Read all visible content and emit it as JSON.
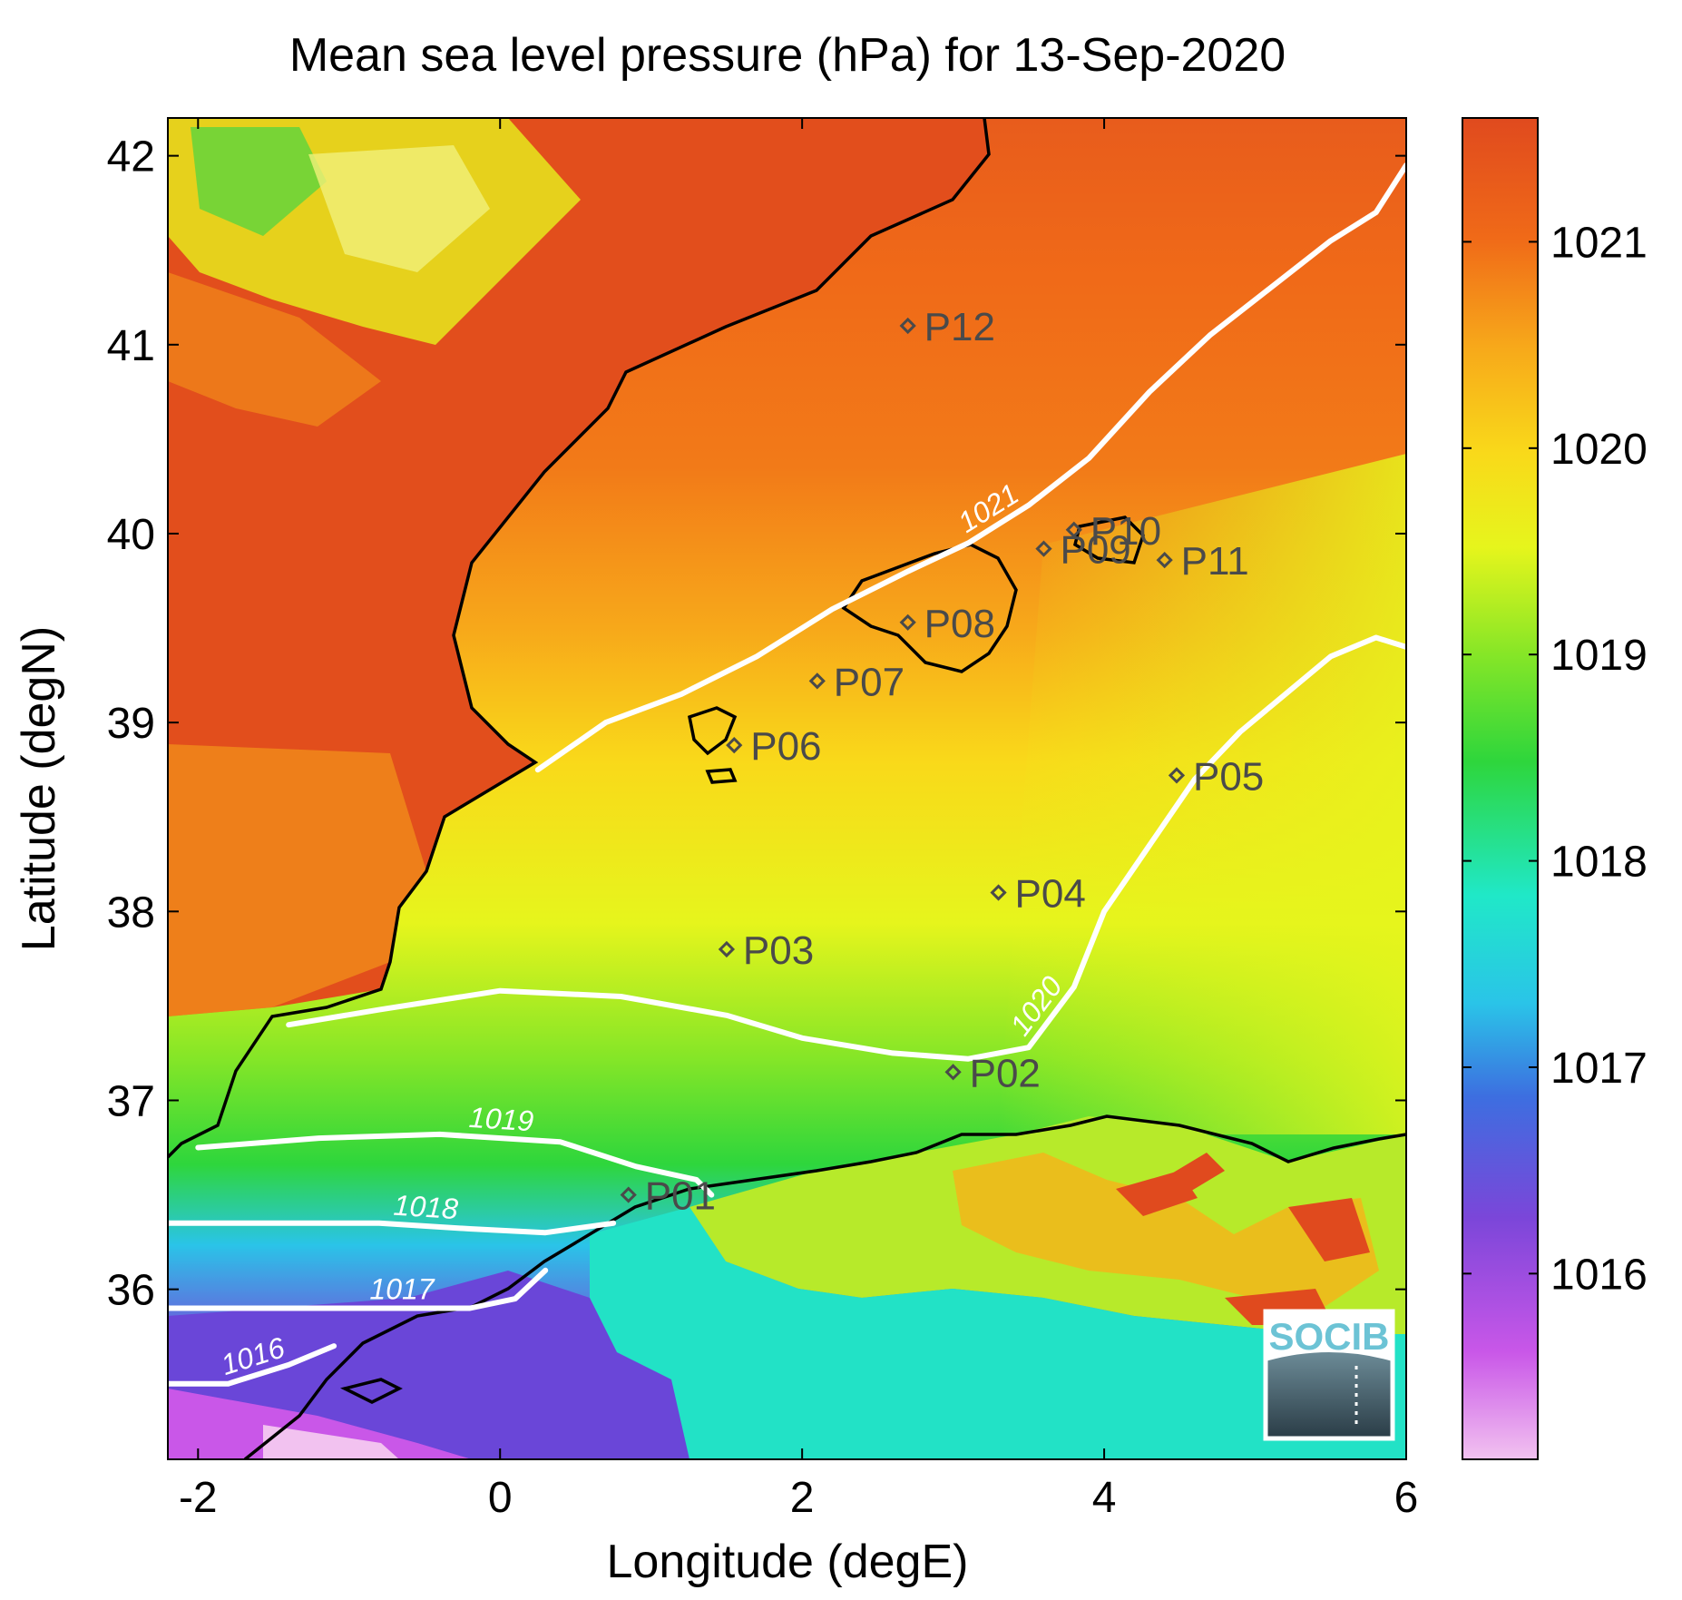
{
  "title": "Mean sea level pressure (hPa) for 13-Sep-2020",
  "chart_data": {
    "type": "heatmap",
    "title": "Mean sea level pressure (hPa) for 13-Sep-2020",
    "xlabel": "Longitude (degE)",
    "ylabel": "Latitude (degN)",
    "xlim": [
      -2.2,
      6.0
    ],
    "ylim": [
      35.1,
      42.2
    ],
    "x_ticks": [
      "-2",
      "0",
      "2",
      "4",
      "6"
    ],
    "y_ticks": [
      "36",
      "37",
      "38",
      "39",
      "40",
      "41",
      "42"
    ],
    "colorbar": {
      "range": [
        1015.1,
        1021.6
      ],
      "ticks": [
        "1016",
        "1017",
        "1018",
        "1019",
        "1020",
        "1021"
      ]
    },
    "contours": [
      {
        "level": "1016",
        "label": "1016",
        "points": [
          [
            -2.2,
            35.5
          ],
          [
            -1.8,
            35.5
          ],
          [
            -1.4,
            35.6
          ],
          [
            -1.1,
            35.7
          ]
        ]
      },
      {
        "level": "1017",
        "label": "1017",
        "points": [
          [
            -2.2,
            35.9
          ],
          [
            -1.5,
            35.9
          ],
          [
            -0.8,
            35.9
          ],
          [
            -0.5,
            35.9
          ],
          [
            -0.2,
            35.9
          ],
          [
            0.1,
            35.95
          ],
          [
            0.3,
            36.1
          ]
        ]
      },
      {
        "level": "1018",
        "label": "1018",
        "points": [
          [
            -2.2,
            36.35
          ],
          [
            -1.5,
            36.35
          ],
          [
            -0.8,
            36.35
          ],
          [
            -0.2,
            36.32
          ],
          [
            0.3,
            36.3
          ],
          [
            0.75,
            36.35
          ]
        ]
      },
      {
        "level": "1019",
        "label": "1019",
        "points": [
          [
            -2.0,
            36.75
          ],
          [
            -1.2,
            36.8
          ],
          [
            -0.4,
            36.82
          ],
          [
            0.4,
            36.78
          ],
          [
            0.9,
            36.65
          ],
          [
            1.3,
            36.58
          ],
          [
            1.4,
            36.5
          ]
        ]
      },
      {
        "level": "1020",
        "label": "1020",
        "points": [
          [
            -1.4,
            37.4
          ],
          [
            -0.8,
            37.48
          ],
          [
            0.0,
            37.58
          ],
          [
            0.8,
            37.55
          ],
          [
            1.5,
            37.45
          ],
          [
            2.0,
            37.33
          ],
          [
            2.6,
            37.25
          ],
          [
            3.1,
            37.22
          ],
          [
            3.5,
            37.28
          ],
          [
            3.8,
            37.6
          ],
          [
            4.0,
            38.0
          ],
          [
            4.3,
            38.35
          ],
          [
            4.6,
            38.7
          ],
          [
            4.9,
            38.95
          ],
          [
            5.2,
            39.15
          ],
          [
            5.5,
            39.35
          ],
          [
            5.8,
            39.45
          ],
          [
            6.0,
            39.4
          ]
        ]
      },
      {
        "level": "1021",
        "label": "1021",
        "points": [
          [
            0.25,
            38.75
          ],
          [
            0.7,
            39.0
          ],
          [
            1.2,
            39.15
          ],
          [
            1.7,
            39.35
          ],
          [
            2.2,
            39.6
          ],
          [
            2.7,
            39.8
          ],
          [
            3.1,
            39.95
          ],
          [
            3.5,
            40.15
          ],
          [
            3.9,
            40.4
          ],
          [
            4.3,
            40.75
          ],
          [
            4.7,
            41.05
          ],
          [
            5.1,
            41.3
          ],
          [
            5.5,
            41.55
          ],
          [
            5.8,
            41.7
          ],
          [
            6.0,
            41.95
          ]
        ]
      }
    ],
    "stations": [
      {
        "id": "P01",
        "lon": 0.85,
        "lat": 36.5
      },
      {
        "id": "P02",
        "lon": 3.0,
        "lat": 37.15
      },
      {
        "id": "P03",
        "lon": 1.5,
        "lat": 37.8
      },
      {
        "id": "P04",
        "lon": 3.3,
        "lat": 38.1
      },
      {
        "id": "P05",
        "lon": 4.48,
        "lat": 38.72
      },
      {
        "id": "P06",
        "lon": 1.55,
        "lat": 38.88
      },
      {
        "id": "P07",
        "lon": 2.1,
        "lat": 39.22
      },
      {
        "id": "P08",
        "lon": 2.7,
        "lat": 39.53
      },
      {
        "id": "P09",
        "lon": 3.6,
        "lat": 39.92
      },
      {
        "id": "P10",
        "lon": 3.8,
        "lat": 40.02
      },
      {
        "id": "P11",
        "lon": 4.4,
        "lat": 39.86
      },
      {
        "id": "P12",
        "lon": 2.7,
        "lat": 41.1
      }
    ],
    "grid": false,
    "colormap": [
      "#f2c2f0",
      "#c957e8",
      "#7b46d9",
      "#3d6ee0",
      "#2ac4e8",
      "#20e8c8",
      "#2ed63c",
      "#86e627",
      "#e6f51c",
      "#f9d91a",
      "#f7a81a",
      "#f06a18",
      "#e04a1e"
    ]
  },
  "logo": {
    "text": "SOCIB"
  }
}
